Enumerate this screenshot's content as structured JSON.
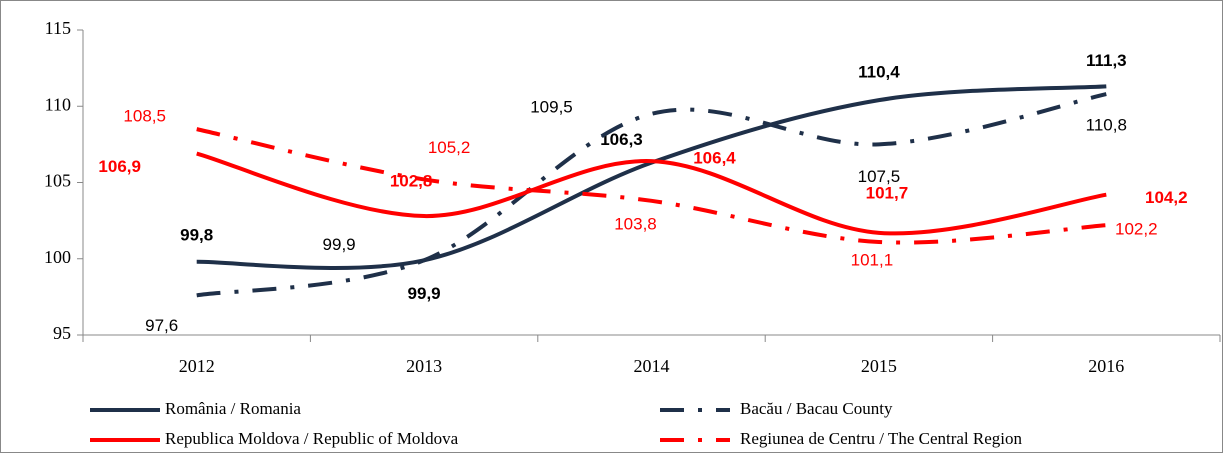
{
  "chart_data": {
    "type": "line",
    "categories": [
      "2012",
      "2013",
      "2014",
      "2015",
      "2016"
    ],
    "ylim": [
      95,
      115
    ],
    "yticks": [
      95,
      100,
      105,
      110,
      115
    ],
    "series": [
      {
        "name": "România / Romania",
        "color": "#1f3049",
        "style": "solid",
        "bold_labels": true,
        "values": [
          99.8,
          99.9,
          106.3,
          110.4,
          111.3
        ],
        "value_labels": [
          "99,8",
          "99,9",
          "106,3",
          "110,4",
          "111,3"
        ]
      },
      {
        "name": "Bacău / Bacau County",
        "color": "#1f3049",
        "style": "dashdot",
        "bold_labels": false,
        "values": [
          97.6,
          99.9,
          109.5,
          107.5,
          110.8
        ],
        "value_labels": [
          "97,6",
          "99,9",
          "109,5",
          "107,5",
          "110,8"
        ]
      },
      {
        "name": "Republica  Moldova / Republic of Moldova",
        "color": "#ff0000",
        "style": "solid",
        "bold_labels": true,
        "values": [
          106.9,
          102.8,
          106.4,
          101.7,
          104.2
        ],
        "value_labels": [
          "106,9",
          "102,8",
          "106,4",
          "101,7",
          "104,2"
        ]
      },
      {
        "name": "Regiunea de Centru / The Central Region",
        "color": "#ff0000",
        "style": "dashdot",
        "bold_labels": false,
        "values": [
          108.5,
          105.2,
          103.8,
          101.1,
          102.2
        ],
        "value_labels": [
          "108,5",
          "105,2",
          "103,8",
          "101,1",
          "102,2"
        ]
      }
    ]
  }
}
